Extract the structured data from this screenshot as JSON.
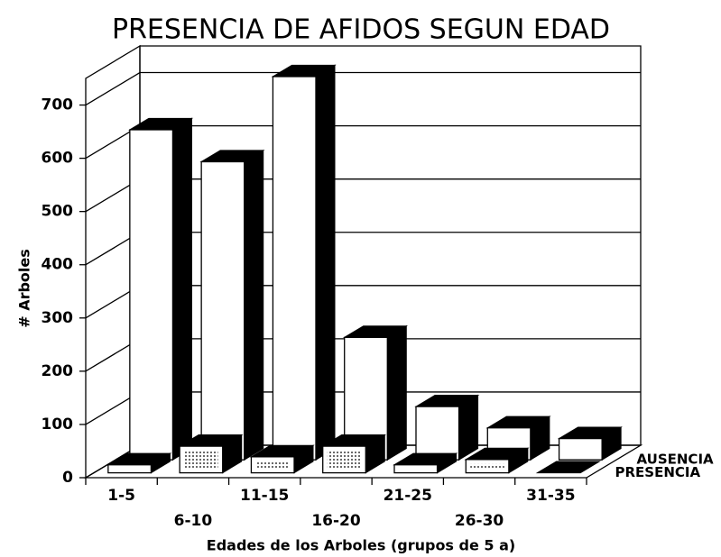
{
  "chart_data": {
    "type": "bar3d",
    "title": "PRESENCIA DE AFIDOS SEGUN EDAD",
    "xlabel": "Edades de los Arboles (grupos de 5 a)",
    "ylabel": "# Arboles",
    "categories": [
      "1-5",
      "6-10",
      "11-15",
      "16-20",
      "21-25",
      "26-30",
      "31-35"
    ],
    "series": [
      {
        "name": "AUSENCIA",
        "color": "#ffffff",
        "values": [
          620,
          560,
          720,
          230,
          100,
          60,
          40
        ]
      },
      {
        "name": "PRESENCIA",
        "color": "#ffffff",
        "pattern": "dots",
        "values": [
          15,
          50,
          30,
          50,
          15,
          25,
          0
        ]
      }
    ],
    "ylim": [
      0,
      750
    ],
    "yticks": [
      0,
      100,
      200,
      300,
      400,
      500,
      600,
      700
    ],
    "grid": true
  }
}
